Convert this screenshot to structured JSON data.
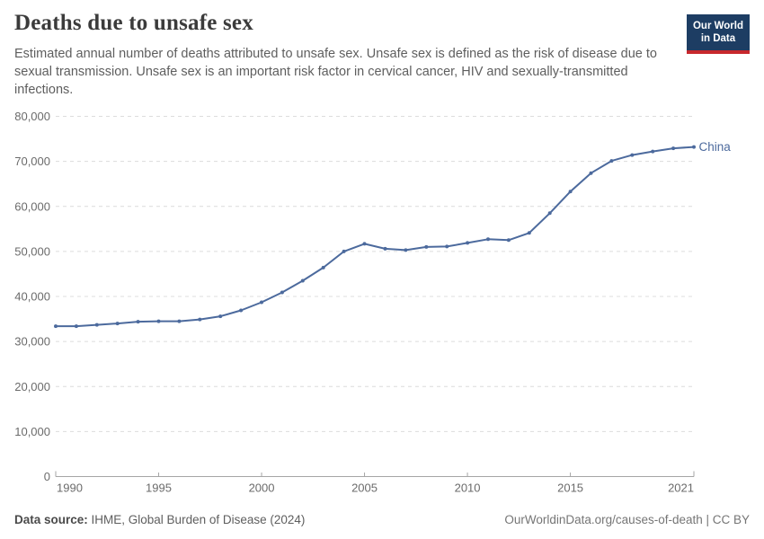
{
  "header": {
    "title": "Deaths due to unsafe sex",
    "subtitle": "Estimated annual number of deaths attributed to unsafe sex. Unsafe sex is defined as the risk of disease due to sexual transmission. Unsafe sex is an important risk factor in cervical cancer, HIV and sexually-transmitted infections.",
    "logo": {
      "line1": "Our World",
      "line2": "in Data",
      "bg": "#1d3d63",
      "accent": "#c7282d"
    }
  },
  "chart_data": {
    "type": "line",
    "title": "Deaths due to unsafe sex",
    "x": [
      1990,
      1991,
      1992,
      1993,
      1994,
      1995,
      1996,
      1997,
      1998,
      1999,
      2000,
      2001,
      2002,
      2003,
      2004,
      2005,
      2006,
      2007,
      2008,
      2009,
      2010,
      2011,
      2012,
      2013,
      2014,
      2015,
      2016,
      2017,
      2018,
      2019,
      2020,
      2021
    ],
    "series": [
      {
        "name": "China",
        "color": "#4c6a9d",
        "values": [
          33400,
          33400,
          33700,
          34000,
          34400,
          34500,
          34500,
          34900,
          35600,
          36900,
          38700,
          40900,
          43500,
          46400,
          50000,
          51700,
          50600,
          50300,
          51000,
          51100,
          51900,
          52700,
          52500,
          54100,
          58500,
          63300,
          67400,
          70100,
          71400,
          72200,
          72900,
          73200
        ]
      }
    ],
    "xlabel": "",
    "ylabel": "",
    "xlim": [
      1990,
      2021
    ],
    "ylim": [
      0,
      80000
    ],
    "x_ticks": [
      1990,
      1995,
      2000,
      2005,
      2010,
      2015,
      2021
    ],
    "y_ticks": [
      0,
      10000,
      20000,
      30000,
      40000,
      50000,
      60000,
      70000,
      80000
    ],
    "grid": "horizontal-dashed",
    "legend": "line-end-label",
    "grid_color": "#dcdcdc",
    "axis_color": "#a5a5a5",
    "tick_label_color": "#6b6b6b"
  },
  "footer": {
    "source_label": "Data source:",
    "source_value": " IHME, Global Burden of Disease (2024)",
    "link": "OurWorldinData.org/causes-of-death | CC BY"
  }
}
